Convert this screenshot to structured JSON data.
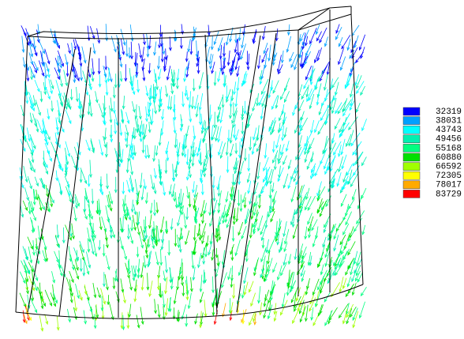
{
  "legend": {
    "entries": [
      {
        "label": "32319",
        "color": "#0000ff"
      },
      {
        "label": "38031",
        "color": "#00a0ff"
      },
      {
        "label": "43743",
        "color": "#00ffff"
      },
      {
        "label": "49456",
        "color": "#00f0b0"
      },
      {
        "label": "55168",
        "color": "#00ff80"
      },
      {
        "label": "60880",
        "color": "#00e000"
      },
      {
        "label": "66592",
        "color": "#a0ff00"
      },
      {
        "label": "72305",
        "color": "#ffff00"
      },
      {
        "label": "78017",
        "color": "#ffaa00"
      },
      {
        "label": "83729",
        "color": "#ff0000"
      }
    ]
  }
}
